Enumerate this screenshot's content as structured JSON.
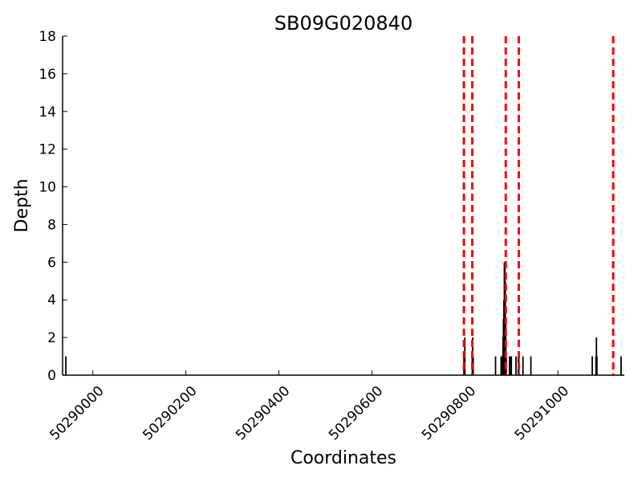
{
  "chart_data": {
    "type": "bar",
    "title": "SB09G020840",
    "xlabel": "Coordinates",
    "ylabel": "Depth",
    "xlim": [
      50289935,
      50291143
    ],
    "ylim": [
      0,
      18
    ],
    "x_ticks": [
      50290000,
      50290200,
      50290400,
      50290600,
      50290800,
      50291000
    ],
    "x_tick_labels": [
      "50290000",
      "50290200",
      "50290400",
      "50290600",
      "50290800",
      "50291000"
    ],
    "y_ticks": [
      0,
      2,
      4,
      6,
      8,
      10,
      12,
      14,
      16,
      18
    ],
    "y_tick_labels": [
      "0",
      "2",
      "4",
      "6",
      "8",
      "10",
      "12",
      "14",
      "16",
      "18"
    ],
    "grid": false,
    "series": [
      {
        "x": [
          50289942,
          50290798,
          50290799,
          50290800,
          50290816,
          50290817,
          50290818,
          50290866,
          50290878,
          50290879,
          50290882,
          50290883,
          50290884,
          50290885,
          50290886,
          50290887,
          50290888,
          50290889,
          50290896,
          50290899,
          50290900,
          50290910,
          50290915,
          50290916,
          50290925,
          50290942,
          50291074,
          50291082,
          50291083,
          50291084,
          50291136
        ],
        "values": [
          1,
          1,
          1,
          2,
          1,
          2,
          1,
          1,
          1,
          1,
          2,
          3,
          4,
          6,
          6,
          5,
          3,
          1,
          1,
          1,
          1,
          1,
          1,
          1,
          1,
          1,
          1,
          1,
          2,
          1,
          1
        ]
      }
    ],
    "vlines": [
      50290798,
      50290816,
      50290888,
      50290916,
      50291119
    ],
    "colors": {
      "bars": "#000000",
      "vlines": "#ff0000",
      "axes": "#000000"
    }
  }
}
